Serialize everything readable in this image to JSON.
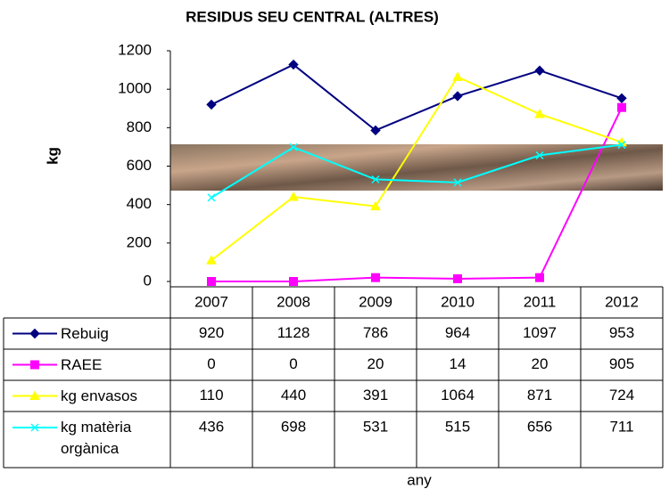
{
  "chart_data": {
    "type": "line",
    "title": "RESIDUS SEU CENTRAL (ALTRES)",
    "y_label": "kg",
    "x_label": "any",
    "categories": [
      "2007",
      "2008",
      "2009",
      "2010",
      "2011",
      "2012"
    ],
    "series": [
      {
        "name": "Rebuig",
        "color": "#000080",
        "marker": "diamond",
        "values": [
          920,
          1128,
          786,
          964,
          1097,
          953
        ]
      },
      {
        "name": "RAEE",
        "color": "#ff00ff",
        "marker": "square",
        "values": [
          0,
          0,
          20,
          14,
          20,
          905
        ]
      },
      {
        "name": "kg envasos",
        "color": "#ffff00",
        "marker": "triangle",
        "values": [
          110,
          440,
          391,
          1064,
          871,
          724
        ]
      },
      {
        "name": "kg matèria orgànica",
        "color": "#00ffff",
        "marker": "x",
        "values": [
          436,
          698,
          531,
          515,
          656,
          711
        ]
      }
    ],
    "ylim": [
      0,
      1200
    ],
    "yticks": [
      0,
      200,
      400,
      600,
      800,
      1000,
      1200
    ],
    "grid": false
  }
}
